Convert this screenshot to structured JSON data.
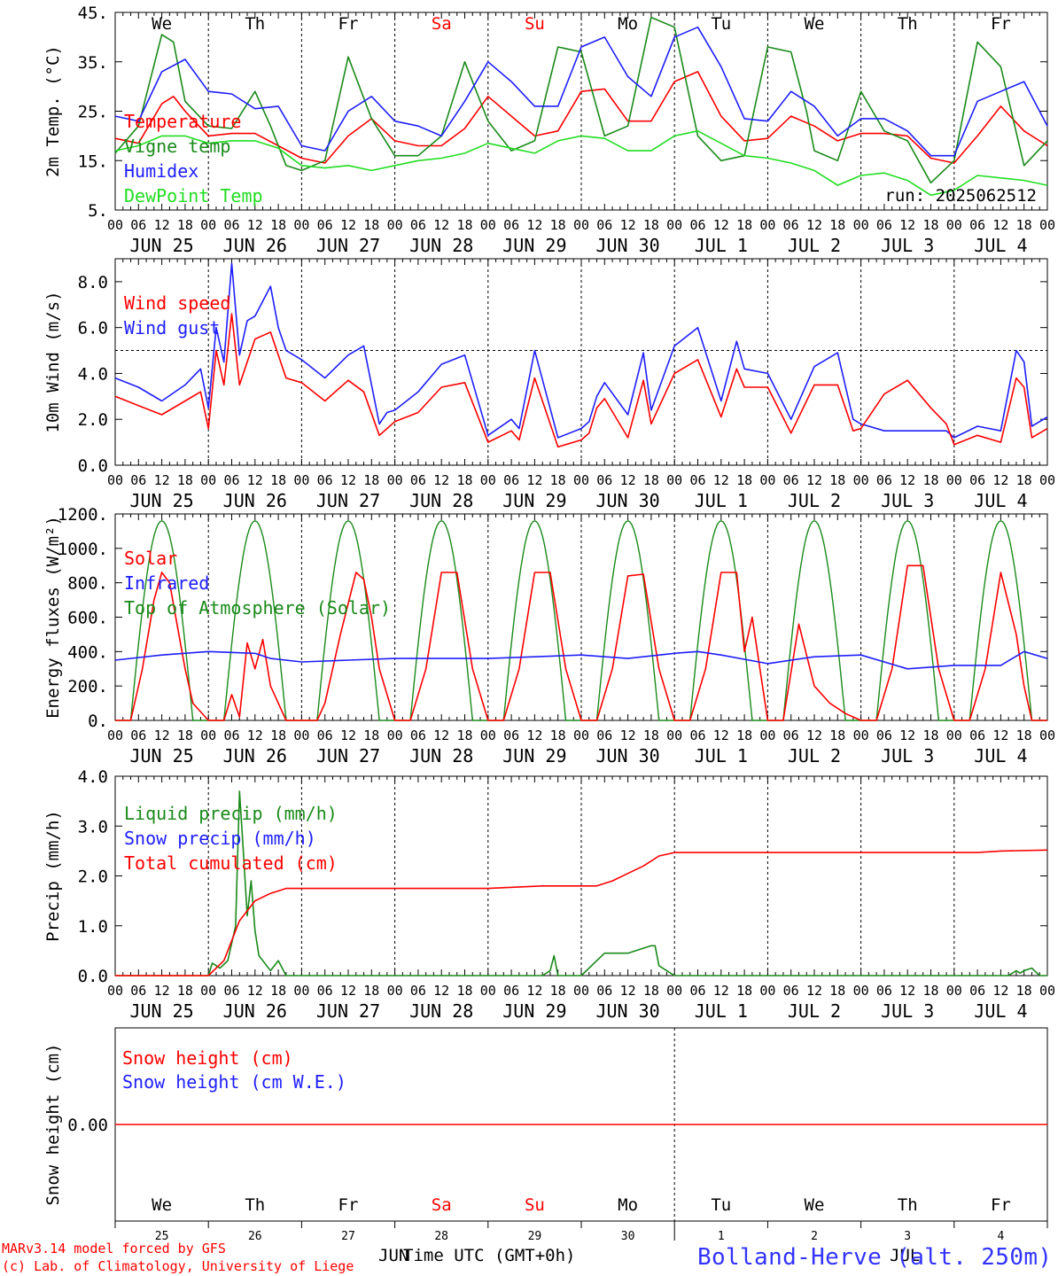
{
  "colors": {
    "red": "#ff0000",
    "green": "#1a8a1a",
    "lightgreen": "#22dd22",
    "blue": "#1e1eff",
    "black": "#000000",
    "station_blue": "#3333ff"
  },
  "days": {
    "weekday_top": [
      "We",
      "Th",
      "Fr",
      "Sa",
      "Su",
      "Mo",
      "Tu",
      "We",
      "Th",
      "Fr"
    ],
    "weekday_weekend": [
      false,
      false,
      false,
      true,
      true,
      false,
      false,
      false,
      false,
      false
    ],
    "date_labels": [
      "JUN 25",
      "JUN 26",
      "JUN 27",
      "JUN 28",
      "JUN 29",
      "JUN 30",
      "JUL  1",
      "JUL  2",
      "JUL  3",
      "JUL  4"
    ],
    "hour_ticks": [
      "00",
      "06",
      "12",
      "18"
    ],
    "final_hour_tick": "00",
    "bottom_day_numbers": [
      "25",
      "26",
      "27",
      "28",
      "29",
      "30",
      "1",
      "2",
      "3",
      "4"
    ],
    "bottom_month_left": "JUN",
    "bottom_month_right": "JUL"
  },
  "footer": {
    "credit_line1": "MARv3.14 model forced by GFS",
    "credit_line2": "(c) Lab. of Climatology, University of Liege",
    "xlabel": "Time UTC (GMT+0h)",
    "station": "Bolland-Herve (alt. 250m)"
  },
  "chart_data": [
    {
      "type": "line",
      "ylabel": "2m Temp. (°C)",
      "yticks": [
        "5.",
        "15.",
        "25.",
        "35.",
        "45."
      ],
      "ylim": [
        5,
        45
      ],
      "xlim_hours": [
        0,
        240
      ],
      "annotation": "run: 2025062512",
      "series": [
        {
          "name": "Temperature",
          "color": "red",
          "x": [
            0,
            6,
            12,
            15,
            18,
            24,
            30,
            36,
            42,
            48,
            54,
            60,
            66,
            72,
            78,
            84,
            90,
            96,
            102,
            108,
            114,
            120,
            126,
            132,
            138,
            144,
            150,
            156,
            162,
            168,
            174,
            180,
            186,
            192,
            198,
            204,
            210,
            216,
            222,
            228,
            234,
            240
          ],
          "y": [
            19.5,
            18.5,
            26.5,
            28,
            25,
            20,
            20.5,
            20.5,
            18,
            15.5,
            14.5,
            20,
            23.5,
            19,
            18,
            18,
            21.5,
            28,
            24,
            20,
            21,
            29,
            29.5,
            23,
            23,
            31,
            33,
            24,
            19,
            19.5,
            24,
            22,
            19,
            20.5,
            20.5,
            20,
            15.5,
            14.5,
            20,
            26,
            21,
            18
          ]
        },
        {
          "name": "Vigne temp",
          "color": "green",
          "x": [
            0,
            6,
            12,
            15,
            18,
            24,
            30,
            36,
            40,
            44,
            48,
            54,
            60,
            66,
            72,
            78,
            84,
            90,
            96,
            102,
            108,
            114,
            120,
            126,
            132,
            138,
            144,
            150,
            156,
            162,
            168,
            174,
            178,
            180,
            186,
            192,
            198,
            204,
            210,
            216,
            222,
            228,
            234,
            240
          ],
          "y": [
            16.5,
            22,
            40.5,
            39,
            27,
            22,
            21.5,
            29,
            22,
            14,
            13,
            15,
            36,
            23.5,
            16,
            16,
            20,
            35,
            23,
            17,
            19,
            38,
            37,
            20,
            22,
            44,
            42,
            20,
            15,
            16,
            38,
            37,
            25,
            17,
            15,
            29,
            21,
            19,
            10.5,
            15,
            39,
            34,
            14,
            19
          ]
        },
        {
          "name": "Humidex",
          "color": "blue",
          "x": [
            0,
            6,
            12,
            18,
            24,
            30,
            36,
            42,
            48,
            54,
            60,
            66,
            72,
            78,
            84,
            90,
            96,
            102,
            108,
            114,
            120,
            126,
            132,
            138,
            144,
            150,
            156,
            162,
            168,
            174,
            180,
            186,
            192,
            198,
            204,
            210,
            216,
            222,
            228,
            234,
            240
          ],
          "y": [
            24,
            23,
            33,
            35.5,
            29,
            28.5,
            25.5,
            26,
            18,
            17,
            25,
            28,
            23,
            22,
            20,
            27,
            35,
            31,
            26,
            26,
            38,
            40,
            32,
            28,
            40,
            42,
            34,
            23.5,
            23,
            29,
            26,
            20,
            23.5,
            23.5,
            21,
            16,
            16,
            27,
            29,
            31,
            22
          ]
        },
        {
          "name": "DewPoint Temp",
          "color": "lightgreen",
          "x": [
            0,
            6,
            12,
            18,
            24,
            30,
            36,
            42,
            48,
            54,
            60,
            66,
            72,
            78,
            84,
            90,
            96,
            102,
            108,
            114,
            120,
            126,
            132,
            138,
            144,
            150,
            156,
            162,
            168,
            174,
            180,
            186,
            192,
            198,
            204,
            210,
            216,
            222,
            228,
            234,
            240
          ],
          "y": [
            17,
            18,
            20,
            20,
            18.5,
            19,
            19,
            17.5,
            14,
            13.5,
            14,
            13,
            14,
            15,
            15.5,
            16.5,
            18.5,
            17.5,
            16.5,
            19,
            20,
            19.5,
            17,
            17,
            20,
            21,
            18.5,
            16,
            15.5,
            14.5,
            13,
            10,
            12,
            12.5,
            11,
            8,
            9,
            12,
            11.5,
            11,
            10
          ]
        }
      ]
    },
    {
      "type": "line",
      "ylabel": "10m Wind (m/s)",
      "yticks": [
        "0.0",
        "2.0",
        "4.0",
        "6.0",
        "8.0"
      ],
      "ylim": [
        0,
        9
      ],
      "xlim_hours": [
        0,
        240
      ],
      "reference_line_y": 5,
      "series": [
        {
          "name": "Wind speed",
          "color": "red",
          "x": [
            0,
            6,
            12,
            18,
            22,
            24,
            26,
            28,
            30,
            32,
            34,
            36,
            40,
            42,
            44,
            48,
            54,
            60,
            64,
            68,
            70,
            72,
            78,
            84,
            90,
            96,
            102,
            104,
            108,
            114,
            120,
            122,
            124,
            126,
            132,
            136,
            138,
            144,
            150,
            156,
            160,
            162,
            168,
            174,
            180,
            186,
            190,
            192,
            198,
            204,
            210,
            214,
            216,
            222,
            228,
            232,
            234,
            236,
            240
          ],
          "y": [
            3,
            2.6,
            2.2,
            2.8,
            3.2,
            1.6,
            5,
            3.5,
            6.6,
            3.5,
            4.5,
            5.5,
            5.8,
            4.8,
            3.8,
            3.6,
            2.8,
            3.7,
            3.2,
            1.3,
            1.6,
            1.9,
            2.3,
            3.4,
            3.6,
            1.0,
            1.5,
            1.1,
            3.8,
            0.8,
            1.1,
            1.4,
            2.5,
            2.9,
            1.2,
            3.7,
            1.8,
            4.0,
            4.6,
            2.1,
            4.2,
            3.4,
            3.4,
            1.4,
            3.5,
            3.5,
            1.5,
            1.6,
            3.1,
            3.7,
            2.5,
            1.8,
            0.9,
            1.3,
            1.0,
            3.8,
            3.4,
            1.2,
            1.6
          ]
        },
        {
          "name": "Wind gust",
          "color": "blue",
          "x": [
            0,
            6,
            12,
            18,
            22,
            24,
            26,
            28,
            30,
            32,
            34,
            36,
            40,
            42,
            44,
            48,
            54,
            60,
            64,
            68,
            70,
            72,
            78,
            84,
            90,
            96,
            102,
            104,
            108,
            114,
            120,
            122,
            124,
            126,
            132,
            136,
            138,
            144,
            150,
            156,
            160,
            162,
            168,
            174,
            180,
            186,
            190,
            192,
            198,
            204,
            210,
            214,
            216,
            222,
            228,
            232,
            234,
            236,
            240
          ],
          "y": [
            3.8,
            3.4,
            2.8,
            3.5,
            4.2,
            2.5,
            6.0,
            4.5,
            8.8,
            4.8,
            6.3,
            6.5,
            7.8,
            6.0,
            5.0,
            4.6,
            3.8,
            4.8,
            5.2,
            1.8,
            2.3,
            2.4,
            3.2,
            4.4,
            4.8,
            1.3,
            2.0,
            1.6,
            5.0,
            1.2,
            1.6,
            1.9,
            3.0,
            3.6,
            2.2,
            4.9,
            2.4,
            5.2,
            6.0,
            2.8,
            5.4,
            4.2,
            4.0,
            2.0,
            4.3,
            4.9,
            2.0,
            1.8,
            1.5,
            1.5,
            1.5,
            1.5,
            1.2,
            1.7,
            1.5,
            5.0,
            4.5,
            1.7,
            2.1
          ]
        }
      ]
    },
    {
      "type": "line",
      "ylabel": "Energy fluxes (W/m²)",
      "yticks": [
        "0.",
        "200.",
        "400.",
        "600.",
        "800.",
        "1000.",
        "1200."
      ],
      "ylim": [
        0,
        1200
      ],
      "xlim_hours": [
        0,
        240
      ],
      "series": [
        {
          "name": "Solar",
          "color": "red",
          "x": [
            0,
            4,
            7,
            10,
            12,
            14,
            16,
            18,
            20,
            24,
            28,
            30,
            32,
            34,
            36,
            38,
            40,
            42,
            44,
            48,
            52,
            54,
            58,
            62,
            64,
            66,
            68,
            72,
            76,
            80,
            84,
            88,
            92,
            96,
            100,
            104,
            108,
            112,
            116,
            120,
            124,
            128,
            132,
            136,
            140,
            144,
            148,
            152,
            156,
            160,
            162,
            164,
            166,
            168,
            172,
            176,
            180,
            184,
            188,
            192,
            196,
            200,
            204,
            208,
            212,
            216,
            220,
            224,
            228,
            232,
            234,
            236,
            240
          ],
          "y": [
            0,
            0,
            300,
            700,
            860,
            800,
            550,
            300,
            100,
            0,
            0,
            150,
            20,
            450,
            300,
            470,
            200,
            100,
            0,
            0,
            0,
            100,
            500,
            860,
            820,
            600,
            300,
            0,
            0,
            300,
            860,
            860,
            300,
            0,
            0,
            300,
            860,
            860,
            300,
            0,
            0,
            300,
            840,
            850,
            300,
            0,
            0,
            300,
            860,
            860,
            400,
            600,
            300,
            0,
            0,
            560,
            200,
            100,
            40,
            0,
            0,
            300,
            900,
            900,
            300,
            0,
            0,
            300,
            860,
            500,
            200,
            0,
            0
          ]
        },
        {
          "name": "Infrared",
          "color": "blue",
          "x": [
            0,
            12,
            24,
            36,
            40,
            48,
            60,
            72,
            84,
            96,
            108,
            120,
            132,
            144,
            150,
            156,
            168,
            180,
            192,
            204,
            216,
            228,
            234,
            240
          ],
          "y": [
            350,
            380,
            400,
            390,
            360,
            340,
            350,
            360,
            360,
            360,
            370,
            380,
            360,
            390,
            400,
            380,
            330,
            370,
            380,
            300,
            320,
            320,
            400,
            360
          ]
        },
        {
          "name": "Top of Atmosphere (Solar)",
          "color": "green",
          "type": "daily_solar_peak",
          "peak": 1160,
          "sunrise_hour": 4,
          "sunset_hour": 20
        }
      ]
    },
    {
      "type": "line",
      "ylabel": "Precip (mm/h)",
      "yticks": [
        "0.0",
        "1.0",
        "2.0",
        "3.0",
        "4.0"
      ],
      "ylim": [
        0,
        4
      ],
      "xlim_hours": [
        0,
        240
      ],
      "series": [
        {
          "name": "Liquid precip (mm/h)",
          "color": "green",
          "x": [
            0,
            24,
            25,
            27,
            29,
            31,
            32,
            33,
            34,
            35,
            36,
            37,
            38,
            39,
            40,
            42,
            44,
            48,
            110,
            112,
            113,
            114,
            120,
            124,
            126,
            132,
            138,
            139,
            140,
            142,
            144,
            210,
            230,
            232,
            233,
            234,
            236,
            238,
            240
          ],
          "y": [
            0,
            0,
            0.25,
            0.15,
            0.3,
            1.0,
            3.7,
            2.5,
            1.2,
            1.9,
            0.9,
            0.4,
            0.3,
            0.2,
            0.1,
            0.3,
            0,
            0,
            0,
            0.1,
            0.4,
            0,
            0,
            0.3,
            0.45,
            0.45,
            0.6,
            0.6,
            0.2,
            0.1,
            0,
            0,
            0,
            0.1,
            0.05,
            0.1,
            0.15,
            0,
            0
          ]
        },
        {
          "name": "Snow precip (mm/h)",
          "color": "blue",
          "x": [],
          "y": []
        },
        {
          "name": "Total cumulated (cm)",
          "color": "red",
          "x": [
            0,
            24,
            28,
            30,
            32,
            34,
            36,
            40,
            44,
            48,
            96,
            110,
            118,
            124,
            128,
            132,
            136,
            140,
            144,
            216,
            222,
            228,
            240
          ],
          "y": [
            0,
            0,
            0.3,
            0.7,
            1.1,
            1.3,
            1.5,
            1.65,
            1.75,
            1.75,
            1.75,
            1.8,
            1.8,
            1.8,
            1.9,
            2.05,
            2.2,
            2.4,
            2.47,
            2.47,
            2.47,
            2.5,
            2.52
          ]
        }
      ]
    },
    {
      "type": "line",
      "ylabel": "Snow height (cm)",
      "yticks": [
        "0.00"
      ],
      "xlim_hours": [
        0,
        240
      ],
      "series": [
        {
          "name": "Snow height (cm)",
          "color": "red",
          "x": [
            0,
            240
          ],
          "y": [
            0,
            0
          ]
        },
        {
          "name": "Snow height (cm W.E.)",
          "color": "blue",
          "x": [],
          "y": []
        }
      ]
    }
  ]
}
